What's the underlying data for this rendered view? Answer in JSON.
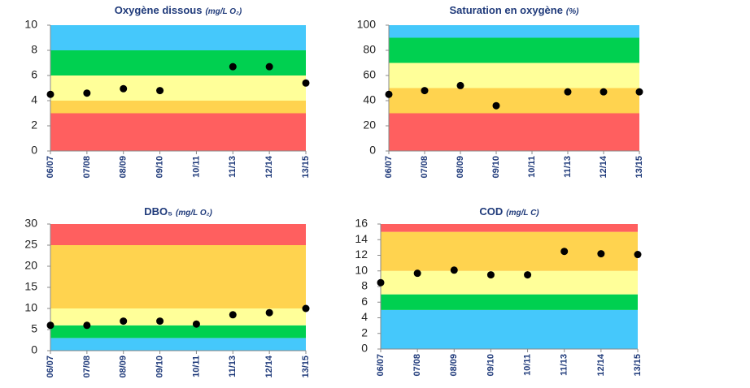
{
  "chart_data": [
    {
      "type": "scatter",
      "title": "Oxygène dissous",
      "unit": "(mg/L O₂)",
      "categories": [
        "06/07",
        "07/08",
        "08/09",
        "09/10",
        "10/11",
        "11/13",
        "12/14",
        "13/15"
      ],
      "values": [
        4.5,
        4.6,
        4.95,
        4.8,
        null,
        6.7,
        6.7,
        5.4
      ],
      "color": "#000000",
      "ylim": [
        0,
        10
      ],
      "yticks": [
        0,
        2,
        4,
        6,
        8,
        10
      ],
      "bands": [
        {
          "from": 0,
          "to": 3,
          "color": "#ff5f5f"
        },
        {
          "from": 3,
          "to": 4,
          "color": "#ffd34f"
        },
        {
          "from": 4,
          "to": 6,
          "color": "#ffff99"
        },
        {
          "from": 6,
          "to": 8,
          "color": "#00d050"
        },
        {
          "from": 8,
          "to": 10,
          "color": "#45c8fb"
        }
      ]
    },
    {
      "type": "scatter",
      "title": "Saturation en oxygène",
      "unit": "(%)",
      "categories": [
        "06/07",
        "07/08",
        "08/09",
        "09/10",
        "10/11",
        "11/13",
        "12/14",
        "13/15"
      ],
      "values": [
        45,
        48,
        52,
        36,
        null,
        47,
        47,
        47
      ],
      "color": "#000000",
      "ylim": [
        0,
        100
      ],
      "yticks": [
        0,
        20,
        40,
        60,
        80,
        100
      ],
      "bands": [
        {
          "from": 0,
          "to": 30,
          "color": "#ff5f5f"
        },
        {
          "from": 30,
          "to": 50,
          "color": "#ffd34f"
        },
        {
          "from": 50,
          "to": 70,
          "color": "#ffff99"
        },
        {
          "from": 70,
          "to": 90,
          "color": "#00d050"
        },
        {
          "from": 90,
          "to": 100,
          "color": "#45c8fb"
        }
      ]
    },
    {
      "type": "scatter",
      "title": "DBO₅",
      "unit": "(mg/L O₂)",
      "categories": [
        "06/07",
        "07/08",
        "08/09",
        "09/10",
        "10/11",
        "11/13",
        "12/14",
        "13/15"
      ],
      "values": [
        6,
        6,
        7,
        7,
        6.3,
        8.5,
        9,
        10
      ],
      "color": "#000000",
      "ylim": [
        0,
        30
      ],
      "yticks": [
        0,
        5,
        10,
        15,
        20,
        25,
        30
      ],
      "bands": [
        {
          "from": 0,
          "to": 3,
          "color": "#45c8fb"
        },
        {
          "from": 3,
          "to": 6,
          "color": "#00d050"
        },
        {
          "from": 6,
          "to": 10,
          "color": "#ffff99"
        },
        {
          "from": 10,
          "to": 25,
          "color": "#ffd34f"
        },
        {
          "from": 25,
          "to": 30,
          "color": "#ff5f5f"
        }
      ]
    },
    {
      "type": "scatter",
      "title": "COD",
      "unit": "(mg/L C)",
      "categories": [
        "06/07",
        "07/08",
        "08/09",
        "09/10",
        "10/11",
        "11/13",
        "12/14",
        "13/15"
      ],
      "values": [
        8.5,
        9.7,
        10.1,
        9.5,
        9.5,
        12.5,
        12.2,
        12.1
      ],
      "color": "#000000",
      "ylim": [
        0,
        16
      ],
      "yticks": [
        0,
        2,
        4,
        6,
        8,
        10,
        12,
        14,
        16
      ],
      "bands": [
        {
          "from": 0,
          "to": 5,
          "color": "#45c8fb"
        },
        {
          "from": 5,
          "to": 7,
          "color": "#00d050"
        },
        {
          "from": 7,
          "to": 10,
          "color": "#ffff99"
        },
        {
          "from": 10,
          "to": 15,
          "color": "#ffd34f"
        },
        {
          "from": 15,
          "to": 16,
          "color": "#ff5f5f"
        }
      ]
    }
  ]
}
